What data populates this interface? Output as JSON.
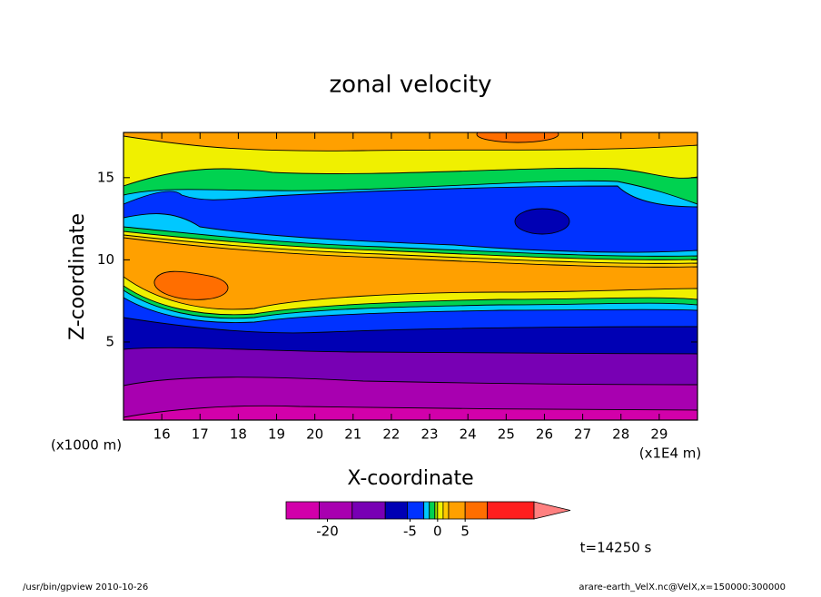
{
  "chart_data": {
    "type": "contour",
    "title": "zonal velocity",
    "x_label": "X-coordinate",
    "y_label": "Z-coordinate",
    "x_unit_label": "(x1E4 m)",
    "y_unit_label": "(x1000 m)",
    "xlim": [
      15,
      30
    ],
    "xticks": [
      16,
      17,
      18,
      19,
      20,
      21,
      22,
      23,
      24,
      25,
      26,
      27,
      28,
      29
    ],
    "ylim": [
      0.25,
      17.75
    ],
    "yticks": [
      5,
      10,
      15
    ],
    "colorbar": {
      "boundaries": [
        -27.5,
        -21.5,
        -15.5,
        -9.5,
        -5.5,
        -2.5,
        -1.5,
        -0.5,
        0,
        1,
        2,
        5,
        9,
        17.5
      ],
      "colors": [
        "#d200aa",
        "#a800b0",
        "#7800b4",
        "#0000b4",
        "#0032ff",
        "#00c8ff",
        "#00d250",
        "#8cdc00",
        "#f0f000",
        "#ffc800",
        "#ffa000",
        "#ff6e00",
        "#ff1e1e"
      ],
      "extend_color": "#ff8080",
      "ticks": [
        -20,
        -5,
        0,
        5
      ]
    },
    "time_label": "t=14250 s"
  },
  "footer_left": "/usr/bin/gpview   2010-10-26",
  "footer_right": "arare-earth_VelX.nc@VelX,x=150000:300000"
}
